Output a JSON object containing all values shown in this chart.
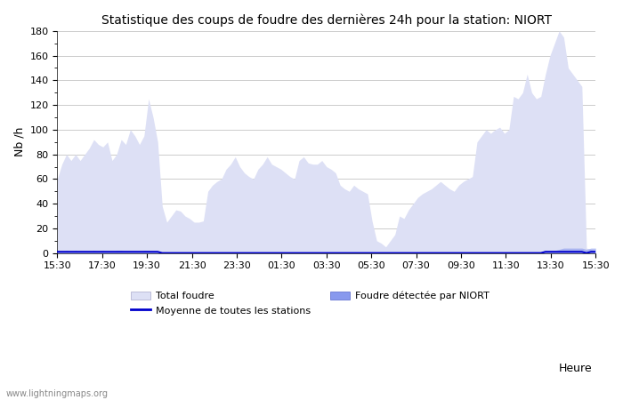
{
  "title": "Statistique des coups de foudre des dernières 24h pour la station: NIORT",
  "ylabel": "Nb /h",
  "xlabel": "Heure",
  "watermark": "www.lightningmaps.org",
  "xlim_labels": [
    "15:30",
    "17:30",
    "19:30",
    "21:30",
    "23:30",
    "01:30",
    "03:30",
    "05:30",
    "07:30",
    "09:30",
    "11:30",
    "13:30",
    "15:30"
  ],
  "ylim": [
    0,
    180
  ],
  "yticks": [
    0,
    20,
    40,
    60,
    80,
    100,
    120,
    140,
    160,
    180
  ],
  "bg_color": "#ffffff",
  "grid_color": "#cccccc",
  "total_foudre_color": "#dde0f5",
  "niort_color": "#8899ee",
  "moyenne_color": "#0000cc",
  "legend_labels": [
    "Total foudre",
    "Moyenne de toutes les stations",
    "Foudre détectée par NIORT"
  ],
  "total_foudre": [
    60,
    72,
    80,
    75,
    80,
    75,
    80,
    85,
    92,
    88,
    86,
    90,
    75,
    80,
    92,
    88,
    100,
    95,
    88,
    95,
    125,
    110,
    90,
    38,
    25,
    30,
    35,
    34,
    30,
    28,
    25,
    25,
    26,
    50,
    55,
    58,
    60,
    68,
    72,
    78,
    70,
    65,
    62,
    60,
    68,
    72,
    78,
    72,
    70,
    68,
    65,
    62,
    60,
    75,
    78,
    73,
    72,
    72,
    75,
    70,
    68,
    65,
    55,
    52,
    50,
    55,
    52,
    50,
    48,
    26,
    10,
    8,
    5,
    10,
    15,
    30,
    28,
    35,
    40,
    45,
    48,
    50,
    52,
    55,
    58,
    55,
    52,
    50,
    55,
    58,
    60,
    62,
    90,
    95,
    100,
    97,
    100,
    102,
    97,
    100,
    127,
    125,
    130,
    145,
    130,
    125,
    127,
    145,
    160,
    170,
    180,
    175,
    150,
    145,
    140,
    135,
    4,
    3,
    2
  ],
  "niort_foudre": [
    2,
    1,
    2,
    1,
    2,
    1,
    1,
    1,
    2,
    1,
    2,
    1,
    1,
    2,
    2,
    1,
    1,
    1,
    1,
    2,
    2,
    1,
    1,
    1,
    1,
    1,
    1,
    1,
    1,
    1,
    1,
    1,
    1,
    1,
    1,
    1,
    1,
    1,
    1,
    1,
    1,
    1,
    1,
    1,
    1,
    1,
    1,
    1,
    1,
    1,
    1,
    1,
    1,
    1,
    1,
    1,
    1,
    1,
    1,
    1,
    1,
    1,
    1,
    1,
    1,
    1,
    1,
    1,
    1,
    1,
    1,
    1,
    1,
    1,
    1,
    1,
    1,
    1,
    1,
    1,
    1,
    1,
    1,
    1,
    1,
    1,
    1,
    1,
    1,
    1,
    1,
    1,
    1,
    1,
    1,
    1,
    1,
    1,
    1,
    1,
    1,
    1,
    1,
    1,
    1,
    1,
    1,
    2,
    2,
    2,
    3,
    4,
    4,
    4,
    4,
    4,
    3,
    4,
    4
  ],
  "moyenne": [
    1,
    1,
    1,
    1,
    1,
    1,
    1,
    1,
    1,
    1,
    1,
    1,
    1,
    1,
    1,
    1,
    1,
    1,
    1,
    1,
    1,
    1,
    1,
    0,
    0,
    0,
    0,
    0,
    0,
    0,
    0,
    0,
    0,
    0,
    0,
    0,
    0,
    0,
    0,
    0,
    0,
    0,
    0,
    0,
    0,
    0,
    0,
    0,
    0,
    0,
    0,
    0,
    0,
    0,
    0,
    0,
    0,
    0,
    0,
    0,
    0,
    0,
    0,
    0,
    0,
    0,
    0,
    0,
    0,
    0,
    0,
    0,
    0,
    0,
    0,
    0,
    0,
    0,
    0,
    0,
    0,
    0,
    0,
    0,
    0,
    0,
    0,
    0,
    0,
    0,
    0,
    0,
    0,
    0,
    0,
    0,
    0,
    0,
    0,
    0,
    0,
    0,
    0,
    0,
    0,
    0,
    0,
    1,
    1,
    1,
    1,
    1,
    1,
    1,
    1,
    1,
    0,
    1,
    1
  ]
}
